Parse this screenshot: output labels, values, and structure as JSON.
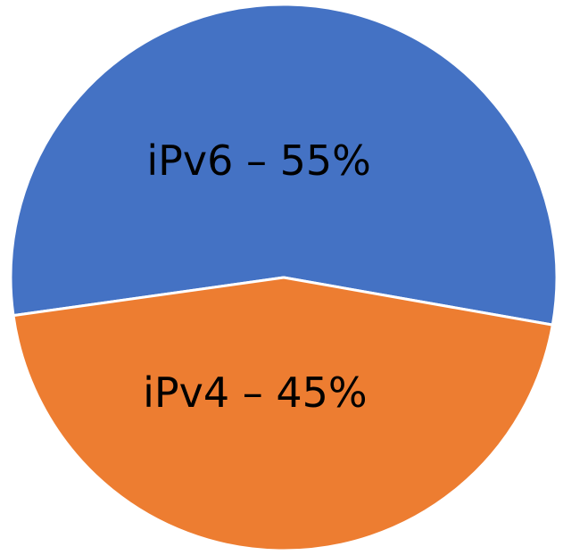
{
  "chart_data": {
    "type": "pie",
    "categories": [
      "iPv6",
      "iPv4"
    ],
    "values": [
      55,
      45
    ],
    "value_labels": [
      "iPv6 – 55%",
      "iPv4 – 45%"
    ],
    "colors": [
      "#4472c4",
      "#ed7d31"
    ]
  }
}
